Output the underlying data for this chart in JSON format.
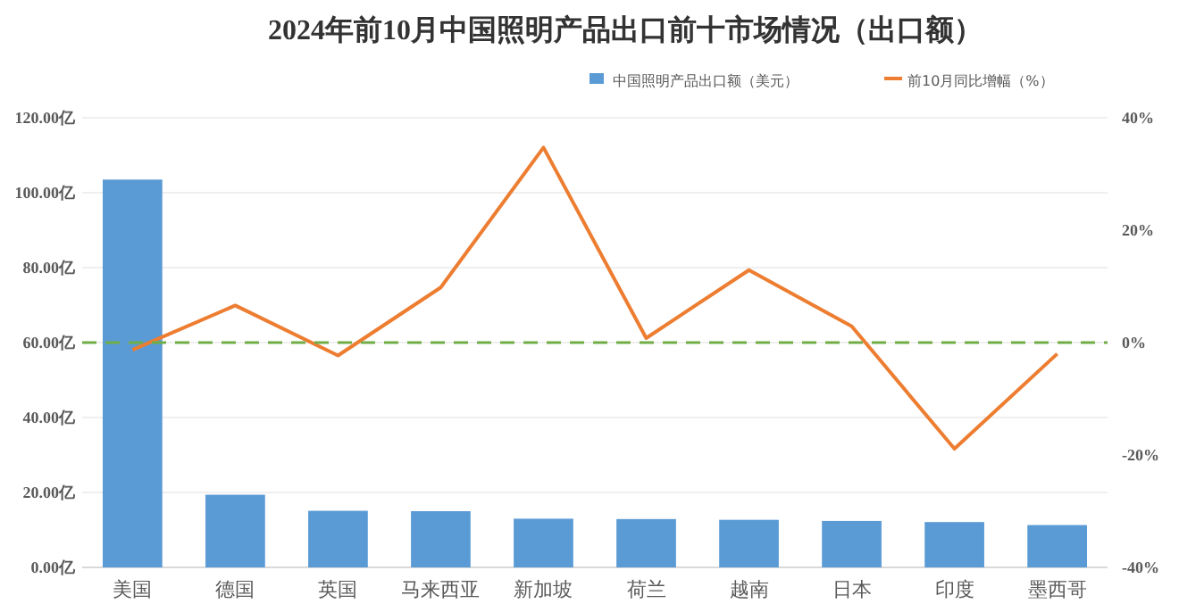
{
  "chart_data": {
    "type": "bar",
    "title": "2024年前10月中国照明产品出口前十市场情况（出口额）",
    "categories": [
      "美国",
      "德国",
      "英国",
      "马来西亚",
      "新加坡",
      "荷兰",
      "越南",
      "日本",
      "印度",
      "墨西哥"
    ],
    "series": [
      {
        "name": "中国照明产品出口额（美元）",
        "color": "#5b9bd5",
        "values": [
          103.5,
          19.4,
          15.1,
          15.0,
          13.0,
          12.9,
          12.7,
          12.4,
          12.1,
          11.3
        ]
      },
      {
        "name": "前10月同比增幅（%）",
        "type": "line",
        "axis": "y2",
        "color": "#ed7d31",
        "values": [
          -1.3,
          6.6,
          -2.3,
          9.8,
          34.7,
          0.8,
          12.9,
          2.9,
          -18.9,
          -2.0
        ]
      }
    ],
    "ylim": [
      0,
      120
    ],
    "yticks": [
      {
        "value": 0,
        "label": "0.00亿"
      },
      {
        "value": 20,
        "label": "20.00亿"
      },
      {
        "value": 40,
        "label": "40.00亿"
      },
      {
        "value": 60,
        "label": "60.00亿"
      },
      {
        "value": 80,
        "label": "80.00亿"
      },
      {
        "value": 100,
        "label": "100.00亿"
      },
      {
        "value": 120,
        "label": "120.00亿"
      }
    ],
    "y2lim": [
      -40,
      40
    ],
    "y2ticks": [
      {
        "value": -40,
        "label": "-40%"
      },
      {
        "value": -20,
        "label": "-20%"
      },
      {
        "value": 0,
        "label": "0%"
      },
      {
        "value": 20,
        "label": "20%"
      },
      {
        "value": 40,
        "label": "40%"
      }
    ],
    "ref_lines": [
      {
        "axis": "y2",
        "value": 0,
        "color": "#70ad47",
        "line_style": "dashed"
      }
    ],
    "grid": "y",
    "legend": "top right",
    "marker": "none",
    "line_style": "solid"
  }
}
